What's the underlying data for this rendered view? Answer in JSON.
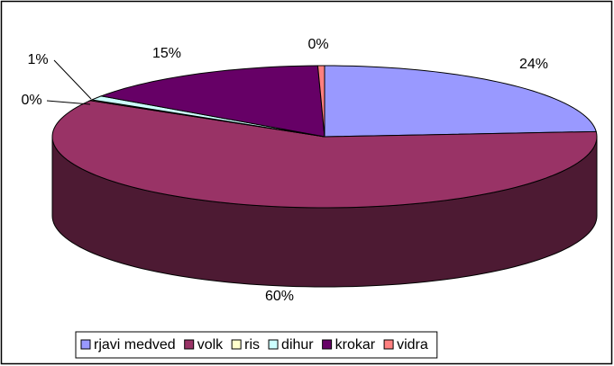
{
  "chart_data": {
    "type": "pie3d",
    "categories": [
      "rjavi medved",
      "volk",
      "ris",
      "dihur",
      "krokar",
      "vidra"
    ],
    "values": [
      24,
      60,
      0.2,
      1,
      15,
      0.4
    ],
    "value_labels": [
      "24%",
      "60%",
      "0%",
      "1%",
      "15%",
      "0%"
    ],
    "colors": [
      "#9999ff",
      "#993366",
      "#ffffcc",
      "#ccffff",
      "#660066",
      "#ff8080"
    ],
    "legend": "bottom"
  }
}
